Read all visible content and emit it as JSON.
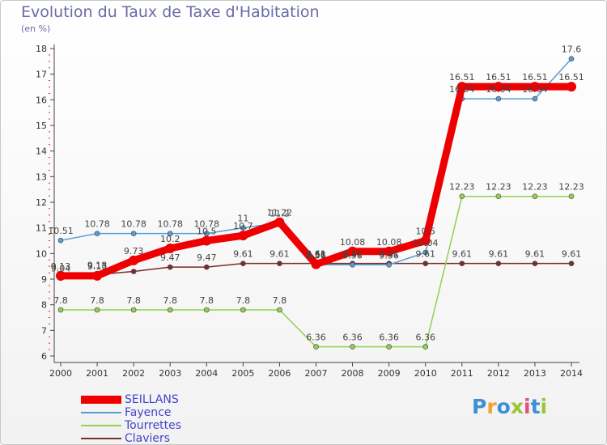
{
  "title": "Evolution du Taux de Taxe d'Habitation",
  "unit_label": "(en %)",
  "logo_text": "Proxiti",
  "chart_data": {
    "type": "line",
    "title": "Evolution du Taux de Taxe d'Habitation",
    "ylabel": "(en %)",
    "xlabel": "",
    "categories": [
      "2000",
      "2001",
      "2002",
      "2003",
      "2004",
      "2005",
      "2006",
      "2007",
      "2008",
      "2009",
      "2010",
      "2011",
      "2012",
      "2013",
      "2014"
    ],
    "ylim": [
      6,
      18
    ],
    "yticks": [
      6,
      7,
      8,
      9,
      10,
      11,
      12,
      13,
      14,
      15,
      16,
      17,
      18
    ],
    "grid": false,
    "legend_position": "bottom-left",
    "series": [
      {
        "name": "SEILLANS",
        "color": "#ee0000",
        "values": [
          9.13,
          9.13,
          9.73,
          10.2,
          10.5,
          10.7,
          11.22,
          9.58,
          10.08,
          10.08,
          10.5,
          16.51,
          16.51,
          16.51,
          16.51
        ],
        "labels": [
          "9.13",
          "9.13",
          "9.73",
          "10.2",
          "10.5",
          "10.7",
          "11.22",
          "9.58",
          "10.08",
          "10.08",
          "10.5",
          "16.51",
          "16.51",
          "16.51",
          "16.51"
        ]
      },
      {
        "name": "Fayence",
        "color": "#5b9bd5",
        "values": [
          10.51,
          10.78,
          10.78,
          10.78,
          10.78,
          11.0,
          11.2,
          9.56,
          9.56,
          9.56,
          10.04,
          16.04,
          16.04,
          16.04,
          17.6
        ],
        "labels": [
          "10.51",
          "10.78",
          "10.78",
          "10.78",
          "10.78",
          "11",
          "11.2",
          "9.56",
          "9.56",
          "9.56",
          "10.04",
          "16.04",
          "16.04",
          "16.04",
          "17.6"
        ]
      },
      {
        "name": "Tourrettes",
        "color": "#92d050",
        "values": [
          7.8,
          7.8,
          7.8,
          7.8,
          7.8,
          7.8,
          7.8,
          6.36,
          6.36,
          6.36,
          6.36,
          12.23,
          12.23,
          12.23,
          12.23
        ],
        "labels": [
          "7.8",
          "7.8",
          "7.8",
          "7.8",
          "7.8",
          "7.8",
          "7.8",
          "6.36",
          "6.36",
          "6.36",
          "6.36",
          "12.23",
          "12.23",
          "12.23",
          "12.23"
        ]
      },
      {
        "name": "Claviers",
        "color": "#7b2c2c",
        "values": [
          9.04,
          9.18,
          9.3,
          9.47,
          9.47,
          9.61,
          9.61,
          9.61,
          9.61,
          9.61,
          9.61,
          9.61,
          9.61,
          9.61,
          9.61
        ],
        "labels": [
          "9.04",
          "9.18",
          "",
          "9.47",
          "9.47",
          "9.61",
          "9.61",
          "9.61",
          "9.61",
          "9.61",
          "9.61",
          "9.61",
          "9.61",
          "9.61",
          "9.61"
        ]
      }
    ]
  }
}
